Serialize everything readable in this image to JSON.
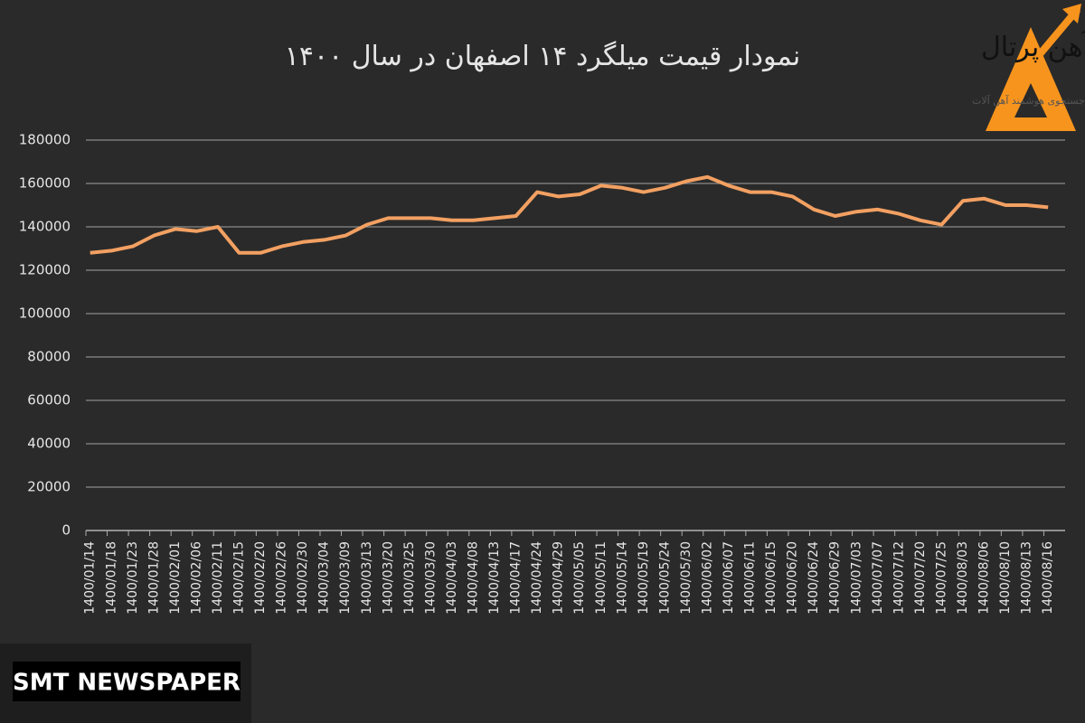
{
  "chart_data": {
    "type": "line",
    "title": "نمودار قیمت میلگرد ۱۴ اصفهان در سال ۱۴۰۰",
    "categories": [
      "1400/01/14",
      "1400/01/18",
      "1400/01/23",
      "1400/01/28",
      "1400/02/01",
      "1400/02/06",
      "1400/02/11",
      "1400/02/15",
      "1400/02/20",
      "1400/02/26",
      "1400/02/30",
      "1400/03/04",
      "1400/03/09",
      "1400/03/13",
      "1400/03/20",
      "1400/03/25",
      "1400/03/30",
      "1400/04/03",
      "1400/04/08",
      "1400/04/13",
      "1400/04/17",
      "1400/04/24",
      "1400/04/29",
      "1400/05/05",
      "1400/05/11",
      "1400/05/14",
      "1400/05/19",
      "1400/05/24",
      "1400/05/30",
      "1400/06/02",
      "1400/06/07",
      "1400/06/11",
      "1400/06/15",
      "1400/06/20",
      "1400/06/24",
      "1400/06/29",
      "1400/07/03",
      "1400/07/07",
      "1400/07/12",
      "1400/07/20",
      "1400/07/25",
      "1400/08/03",
      "1400/08/06",
      "1400/08/10",
      "1400/08/13",
      "1400/08/16"
    ],
    "values": [
      128000,
      129000,
      131000,
      136000,
      139000,
      138000,
      140000,
      128000,
      128000,
      131000,
      133000,
      134000,
      136000,
      141000,
      144000,
      144000,
      144000,
      143000,
      143000,
      144000,
      145000,
      156000,
      154000,
      155000,
      159000,
      158000,
      156000,
      158000,
      161000,
      163000,
      159000,
      156000,
      156000,
      154000,
      148000,
      145000,
      147000,
      148000,
      146000,
      143000,
      141000,
      152000,
      153000,
      150000,
      150000,
      149000
    ],
    "color": "#f2a062",
    "ylim": [
      0,
      180000
    ],
    "yticks": [
      0,
      20000,
      40000,
      60000,
      80000,
      100000,
      120000,
      140000,
      160000,
      180000
    ],
    "grid": true
  },
  "logo": {
    "name": "آهن پرتال",
    "tagline": "جستجوی هوشمند آهن آلات"
  },
  "watermark": "SMT NEWSPAPER"
}
